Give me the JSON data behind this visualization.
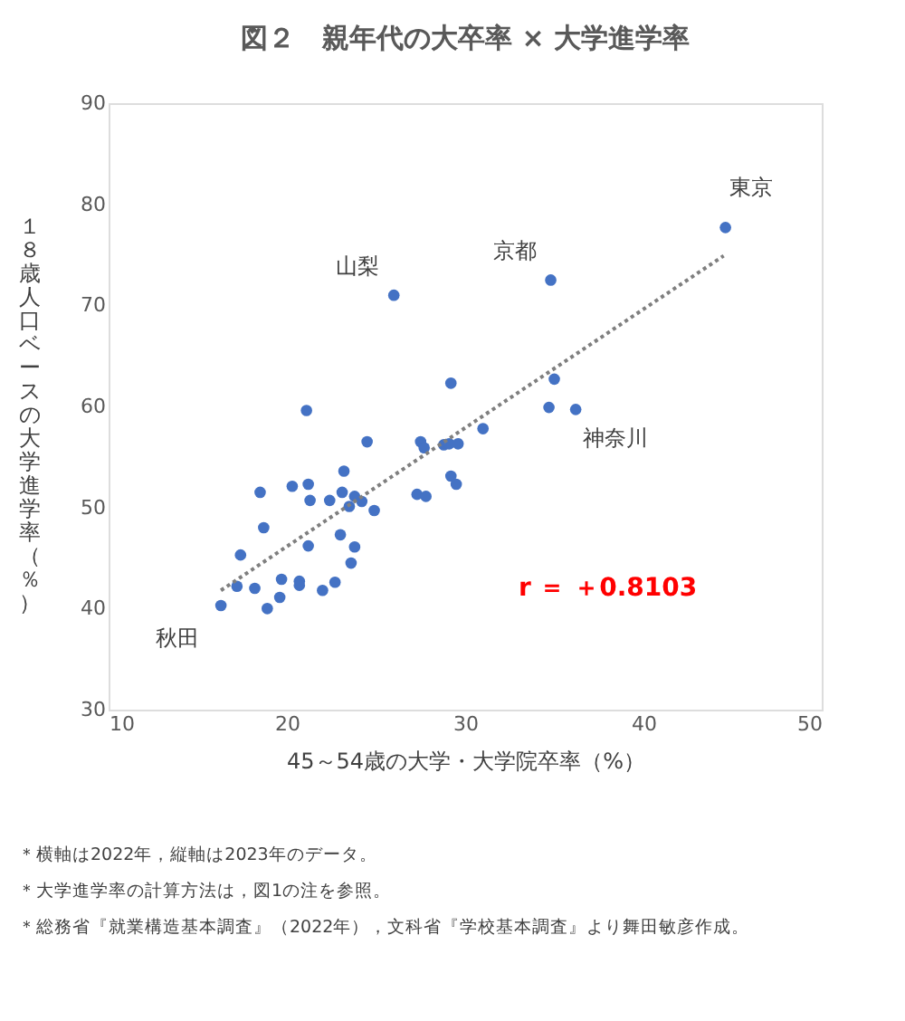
{
  "chart_data": {
    "type": "scatter",
    "title": "図２　親年代の大卒率 × 大学進学率",
    "xlabel": "45～54歳の大学・大学院卒率（%）",
    "ylabel": "１８歳人口ベースの大学進学率（％）",
    "xlim": [
      10,
      50
    ],
    "xticks": [
      10,
      20,
      30,
      40,
      50
    ],
    "ylim": [
      30,
      90
    ],
    "yticks": [
      30,
      40,
      50,
      60,
      70,
      80,
      90
    ],
    "grid": false,
    "series": [
      {
        "color": "#4472c4",
        "marker": "circle",
        "x": [
          29.2,
          21.1,
          24.5,
          27.5,
          27.7,
          28.8,
          29.1,
          29.6,
          31.0,
          23.2,
          20.3,
          21.2,
          18.5,
          21.3,
          22.4,
          23.1,
          23.8,
          23.5,
          24.2,
          24.9,
          27.3,
          27.8,
          29.2,
          29.5,
          18.7,
          23.0,
          21.2,
          23.8,
          17.4,
          23.6,
          17.2,
          18.2,
          19.7,
          20.7,
          20.7,
          22.7,
          22.0,
          19.6,
          18.9,
          16.3,
          35.0,
          34.7,
          36.2,
          44.6,
          34.8,
          26.0
        ],
        "values": [
          62.3,
          59.6,
          56.5,
          56.5,
          55.9,
          56.2,
          56.3,
          56.3,
          57.8,
          53.6,
          52.1,
          52.3,
          51.5,
          50.7,
          50.7,
          51.5,
          51.1,
          50.1,
          50.6,
          49.7,
          51.3,
          51.1,
          53.1,
          52.3,
          48.0,
          47.3,
          46.2,
          46.1,
          45.3,
          44.5,
          42.2,
          42.0,
          42.9,
          42.7,
          42.3,
          42.6,
          41.8,
          41.1,
          40.0,
          40.3,
          62.7,
          59.9,
          59.7,
          77.7,
          72.5,
          71.0
        ]
      },
      {
        "type": "line",
        "color": "#7f7f7f",
        "line_style": "dotted",
        "marker": "none",
        "x": [
          16.3,
          44.5
        ],
        "values": [
          41.8,
          74.9
        ]
      }
    ],
    "annotations": [
      "r ＝ ＋0.8103",
      {
        "text": "東京",
        "x": 44.6,
        "y": 77.7
      },
      {
        "text": "京都",
        "x": 34.8,
        "y": 72.5
      },
      {
        "text": "山梨",
        "x": 26.0,
        "y": 71.0
      },
      {
        "text": "神奈川",
        "x": 36.2,
        "y": 59.7
      },
      {
        "text": "秋田",
        "x": 16.3,
        "y": 40.3
      },
      "＊横軸は2022年，縦軸は2023年のデータ。",
      "＊大学進学率の計算方法は，図1の注を参照。",
      "＊総務省『就業構造基本調査』（2022年），文科省『学校基本調査』より舞田敏彦作成。"
    ]
  }
}
